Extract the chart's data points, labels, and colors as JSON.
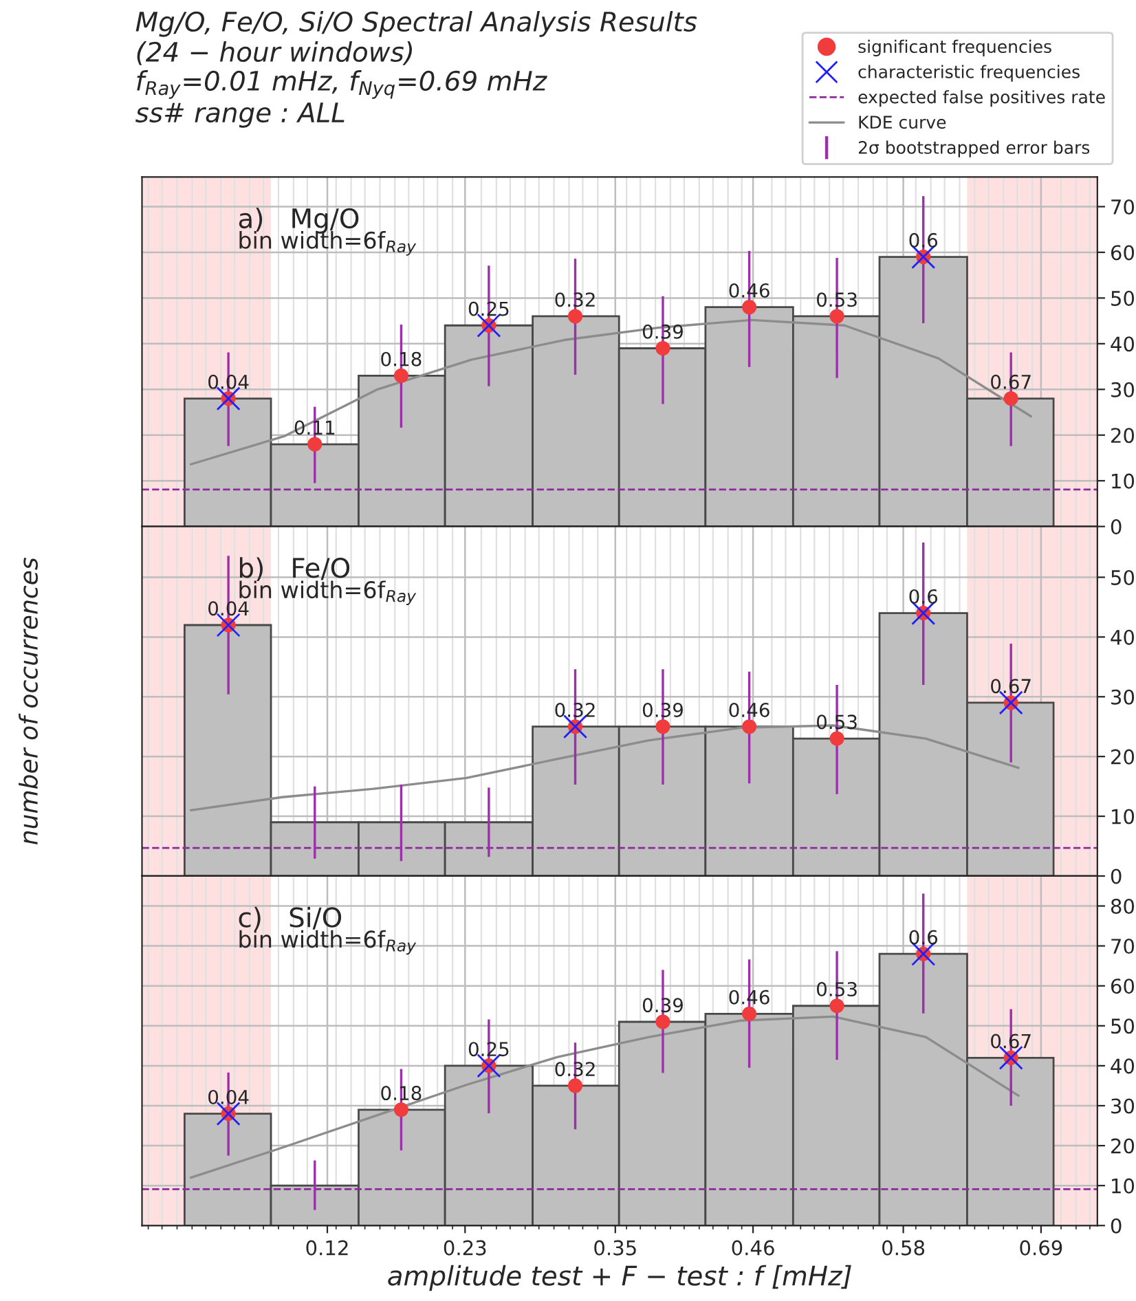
{
  "chart_data": [
    {
      "type": "histogram",
      "title": "Mg/O, Fe/O, Si/O Spectral Analysis Results",
      "subtitle": "(24 − hour windows)\nf$_{Ray}$=0.01 mHz, f$_{Nyq}$=0.69 mHz\nss# range : ALL",
      "annotations": [
        "a)   Mg/O",
        "bin width=6f$_{Ray}$",
        {
          "text": "0.04",
          "x": 0.041,
          "y": 28
        },
        {
          "text": "0.11",
          "x": 0.11,
          "y": 18
        },
        {
          "text": "0.18",
          "x": 0.179,
          "y": 33
        },
        {
          "text": "0.25",
          "x": 0.249,
          "y": 44
        },
        {
          "text": "0.32",
          "x": 0.318,
          "y": 46
        },
        {
          "text": "0.39",
          "x": 0.388,
          "y": 39
        },
        {
          "text": "0.46",
          "x": 0.457,
          "y": 48
        },
        {
          "text": "0.53",
          "x": 0.527,
          "y": 46
        },
        {
          "text": "0.6",
          "x": 0.596,
          "y": 59
        },
        {
          "text": "0.67",
          "x": 0.666,
          "y": 28
        }
      ],
      "xlim": [
        -0.028,
        0.735
      ],
      "xticks": [
        {
          "value": -0.023,
          "label": null
        },
        {
          "value": -0.012,
          "label": null
        },
        {
          "value": 0.0,
          "label": null
        },
        {
          "value": 0.012,
          "label": null
        },
        {
          "value": 0.023,
          "label": null
        },
        {
          "value": 0.035,
          "label": null
        },
        {
          "value": 0.046,
          "label": null
        },
        {
          "value": 0.058,
          "label": null
        },
        {
          "value": 0.069,
          "label": null
        },
        {
          "value": 0.081,
          "label": null
        },
        {
          "value": 0.093,
          "label": null
        },
        {
          "value": 0.104,
          "label": null
        },
        0.12,
        {
          "value": 0.127,
          "label": null
        },
        {
          "value": 0.139,
          "label": null
        },
        {
          "value": 0.15,
          "label": null
        },
        {
          "value": 0.162,
          "label": null
        },
        {
          "value": 0.174,
          "label": null
        },
        {
          "value": 0.185,
          "label": null
        },
        {
          "value": 0.197,
          "label": null
        },
        {
          "value": 0.208,
          "label": null
        },
        {
          "value": 0.22,
          "label": null
        },
        0.23,
        {
          "value": 0.243,
          "label": null
        },
        {
          "value": 0.255,
          "label": null
        },
        {
          "value": 0.266,
          "label": null
        },
        {
          "value": 0.278,
          "label": null
        },
        {
          "value": 0.289,
          "label": null
        },
        {
          "value": 0.301,
          "label": null
        },
        {
          "value": 0.313,
          "label": null
        },
        {
          "value": 0.324,
          "label": null
        },
        {
          "value": 0.336,
          "label": null
        },
        0.35,
        {
          "value": 0.359,
          "label": null
        },
        {
          "value": 0.37,
          "label": null
        },
        {
          "value": 0.382,
          "label": null
        },
        {
          "value": 0.394,
          "label": null
        },
        {
          "value": 0.405,
          "label": null
        },
        {
          "value": 0.417,
          "label": null
        },
        {
          "value": 0.428,
          "label": null
        },
        {
          "value": 0.44,
          "label": null
        },
        {
          "value": 0.451,
          "label": null
        },
        0.46,
        {
          "value": 0.475,
          "label": null
        },
        {
          "value": 0.486,
          "label": null
        },
        {
          "value": 0.498,
          "label": null
        },
        {
          "value": 0.509,
          "label": null
        },
        {
          "value": 0.521,
          "label": null
        },
        {
          "value": 0.532,
          "label": null
        },
        {
          "value": 0.544,
          "label": null
        },
        {
          "value": 0.556,
          "label": null
        },
        {
          "value": 0.567,
          "label": null
        },
        0.58,
        {
          "value": 0.59,
          "label": null
        },
        {
          "value": 0.602,
          "label": null
        },
        {
          "value": 0.613,
          "label": null
        },
        {
          "value": 0.625,
          "label": null
        },
        {
          "value": 0.637,
          "label": null
        },
        {
          "value": 0.648,
          "label": null
        },
        {
          "value": 0.66,
          "label": null
        },
        {
          "value": 0.671,
          "label": null
        },
        {
          "value": 0.683,
          "label": null
        },
        0.69,
        {
          "value": 0.706,
          "label": null
        },
        {
          "value": 0.718,
          "label": null
        },
        {
          "value": 0.729,
          "label": null
        }
      ],
      "ylim": [
        0,
        76.5
      ],
      "yticks": [
        0,
        10,
        20,
        30,
        40,
        50,
        60,
        70
      ],
      "tick_labels": "y",
      "grid": true,
      "legend": "top right",
      "bands": [
        {
          "axis": "x",
          "from": -0.028,
          "to": 0.075,
          "color": "#ffe0e0"
        },
        {
          "axis": "x",
          "from": 0.631,
          "to": 0.735,
          "color": "#ffe0e0"
        }
      ],
      "ref_lines": [
        {
          "axis": "y",
          "value": 8.1,
          "label": "expected false positives rate",
          "color": "#8e2a9e",
          "line_style": "dashed"
        }
      ],
      "series": [
        {
          "color": "#bfbfbf",
          "bins": [
            0.006,
            0.075,
            0.145,
            0.214,
            0.284,
            0.353,
            0.422,
            0.492,
            0.561,
            0.631,
            0.7
          ],
          "values": [
            28,
            18,
            33,
            44,
            46,
            39,
            48,
            46,
            59,
            28
          ]
        },
        {
          "name": "significant frequencies",
          "type": "scatter",
          "marker": "circle",
          "color": "#f03c3c",
          "x": [
            0.041,
            0.11,
            0.179,
            0.249,
            0.318,
            0.388,
            0.457,
            0.527,
            0.596,
            0.666
          ],
          "values": [
            28,
            18,
            33,
            44,
            46,
            39,
            48,
            46,
            59,
            28
          ]
        },
        {
          "name": "characteristic frequencies",
          "type": "scatter",
          "marker": "cross",
          "color": "#2020ff",
          "x": [
            0.041,
            0.249,
            0.596
          ],
          "values": [
            28,
            44,
            59
          ]
        },
        {
          "name": "KDE curve",
          "type": "line",
          "color": "#8c8c8c",
          "x": [
            0.011,
            0.086,
            0.16,
            0.235,
            0.309,
            0.384,
            0.459,
            0.533,
            0.608,
            0.682
          ],
          "values": [
            13.6,
            19.8,
            30,
            36.5,
            40.8,
            43.5,
            45.2,
            44,
            36.8,
            24.1
          ]
        },
        {
          "name": "2σ bootstrapped error bars",
          "type": "bar",
          "color": "#9b30aa",
          "x": [
            0.041,
            0.11,
            0.179,
            0.249,
            0.318,
            0.388,
            0.457,
            0.527,
            0.596,
            0.666
          ],
          "base": [
            17.6,
            9.5,
            21.6,
            30.7,
            33.2,
            26.8,
            34.9,
            32.5,
            44.5,
            17.6
          ],
          "values": [
            20.5,
            16.7,
            22.6,
            26.4,
            25.4,
            23.6,
            25.4,
            26.3,
            27.8,
            20.5
          ]
        }
      ]
    },
    {
      "type": "histogram",
      "ylabel": "number of occurrences",
      "annotations": [
        "b)   Fe/O",
        "bin width=6f$_{Ray}$",
        {
          "text": "0.04",
          "x": 0.041,
          "y": 42
        },
        {
          "text": "0.32",
          "x": 0.318,
          "y": 25
        },
        {
          "text": "0.39",
          "x": 0.388,
          "y": 25
        },
        {
          "text": "0.46",
          "x": 0.457,
          "y": 25
        },
        {
          "text": "0.53",
          "x": 0.527,
          "y": 23
        },
        {
          "text": "0.6",
          "x": 0.596,
          "y": 44
        },
        {
          "text": "0.67",
          "x": 0.666,
          "y": 29
        }
      ],
      "xlim": [
        -0.028,
        0.735
      ],
      "xticks": [
        {
          "value": -0.023,
          "label": null
        },
        {
          "value": -0.012,
          "label": null
        },
        {
          "value": 0.0,
          "label": null
        },
        {
          "value": 0.012,
          "label": null
        },
        {
          "value": 0.023,
          "label": null
        },
        {
          "value": 0.035,
          "label": null
        },
        {
          "value": 0.046,
          "label": null
        },
        {
          "value": 0.058,
          "label": null
        },
        {
          "value": 0.069,
          "label": null
        },
        {
          "value": 0.081,
          "label": null
        },
        {
          "value": 0.093,
          "label": null
        },
        {
          "value": 0.104,
          "label": null
        },
        0.12,
        {
          "value": 0.127,
          "label": null
        },
        {
          "value": 0.139,
          "label": null
        },
        {
          "value": 0.15,
          "label": null
        },
        {
          "value": 0.162,
          "label": null
        },
        {
          "value": 0.174,
          "label": null
        },
        {
          "value": 0.185,
          "label": null
        },
        {
          "value": 0.197,
          "label": null
        },
        {
          "value": 0.208,
          "label": null
        },
        {
          "value": 0.22,
          "label": null
        },
        0.23,
        {
          "value": 0.243,
          "label": null
        },
        {
          "value": 0.255,
          "label": null
        },
        {
          "value": 0.266,
          "label": null
        },
        {
          "value": 0.278,
          "label": null
        },
        {
          "value": 0.289,
          "label": null
        },
        {
          "value": 0.301,
          "label": null
        },
        {
          "value": 0.313,
          "label": null
        },
        {
          "value": 0.324,
          "label": null
        },
        {
          "value": 0.336,
          "label": null
        },
        0.35,
        {
          "value": 0.359,
          "label": null
        },
        {
          "value": 0.37,
          "label": null
        },
        {
          "value": 0.382,
          "label": null
        },
        {
          "value": 0.394,
          "label": null
        },
        {
          "value": 0.405,
          "label": null
        },
        {
          "value": 0.417,
          "label": null
        },
        {
          "value": 0.428,
          "label": null
        },
        {
          "value": 0.44,
          "label": null
        },
        {
          "value": 0.451,
          "label": null
        },
        0.46,
        {
          "value": 0.475,
          "label": null
        },
        {
          "value": 0.486,
          "label": null
        },
        {
          "value": 0.498,
          "label": null
        },
        {
          "value": 0.509,
          "label": null
        },
        {
          "value": 0.521,
          "label": null
        },
        {
          "value": 0.532,
          "label": null
        },
        {
          "value": 0.544,
          "label": null
        },
        {
          "value": 0.556,
          "label": null
        },
        {
          "value": 0.567,
          "label": null
        },
        0.58,
        {
          "value": 0.59,
          "label": null
        },
        {
          "value": 0.602,
          "label": null
        },
        {
          "value": 0.613,
          "label": null
        },
        {
          "value": 0.625,
          "label": null
        },
        {
          "value": 0.637,
          "label": null
        },
        {
          "value": 0.648,
          "label": null
        },
        {
          "value": 0.66,
          "label": null
        },
        {
          "value": 0.671,
          "label": null
        },
        {
          "value": 0.683,
          "label": null
        },
        0.69,
        {
          "value": 0.706,
          "label": null
        },
        {
          "value": 0.718,
          "label": null
        },
        {
          "value": 0.729,
          "label": null
        }
      ],
      "ylim": [
        0,
        58.5
      ],
      "yticks": [
        0,
        10,
        20,
        30,
        40,
        50
      ],
      "tick_labels": "y",
      "grid": true,
      "bands": [
        {
          "axis": "x",
          "from": -0.028,
          "to": 0.075,
          "color": "#ffe0e0"
        },
        {
          "axis": "x",
          "from": 0.631,
          "to": 0.735,
          "color": "#ffe0e0"
        }
      ],
      "ref_lines": [
        {
          "axis": "y",
          "value": 4.7,
          "color": "#8e2a9e",
          "line_style": "dashed"
        }
      ],
      "series": [
        {
          "color": "#bfbfbf",
          "bins": [
            0.006,
            0.075,
            0.145,
            0.214,
            0.284,
            0.353,
            0.422,
            0.492,
            0.561,
            0.631,
            0.7
          ],
          "values": [
            42,
            9,
            9,
            9,
            25,
            25,
            25,
            23,
            44,
            29
          ]
        },
        {
          "type": "scatter",
          "marker": "circle",
          "color": "#f03c3c",
          "x": [
            0.041,
            0.318,
            0.388,
            0.457,
            0.527,
            0.596,
            0.666
          ],
          "values": [
            42,
            25,
            25,
            25,
            23,
            44,
            29
          ]
        },
        {
          "type": "scatter",
          "marker": "cross",
          "color": "#2020ff",
          "x": [
            0.041,
            0.318,
            0.596,
            0.666
          ],
          "values": [
            42,
            25,
            44,
            29
          ]
        },
        {
          "type": "line",
          "color": "#8c8c8c",
          "x": [
            0.011,
            0.084,
            0.157,
            0.231,
            0.304,
            0.377,
            0.45,
            0.524,
            0.598,
            0.672
          ],
          "values": [
            11,
            13.2,
            14.6,
            16.4,
            19.6,
            22.7,
            24.8,
            25.2,
            23,
            18.1
          ]
        },
        {
          "type": "bar",
          "color": "#9b30aa",
          "x": [
            0.041,
            0.11,
            0.179,
            0.249,
            0.318,
            0.388,
            0.457,
            0.527,
            0.596,
            0.666
          ],
          "base": [
            30.4,
            2.9,
            2.5,
            3.2,
            15.3,
            15.3,
            15.5,
            13.7,
            32,
            19
          ],
          "values": [
            23.2,
            12.1,
            12.8,
            11.6,
            19.3,
            19.3,
            18.7,
            18.3,
            23.8,
            19.9
          ]
        }
      ]
    },
    {
      "type": "histogram",
      "xlabel": "amplitude test + F − test : f [mHz]",
      "annotations": [
        "c)   Si/O",
        "bin width=6f$_{Ray}$",
        {
          "text": "0.04",
          "x": 0.041,
          "y": 28
        },
        {
          "text": "0.18",
          "x": 0.179,
          "y": 29
        },
        {
          "text": "0.25",
          "x": 0.249,
          "y": 40
        },
        {
          "text": "0.32",
          "x": 0.318,
          "y": 35
        },
        {
          "text": "0.39",
          "x": 0.388,
          "y": 51
        },
        {
          "text": "0.46",
          "x": 0.457,
          "y": 53
        },
        {
          "text": "0.53",
          "x": 0.527,
          "y": 55
        },
        {
          "text": "0.6",
          "x": 0.596,
          "y": 68
        },
        {
          "text": "0.67",
          "x": 0.666,
          "y": 42
        }
      ],
      "xlim": [
        -0.028,
        0.735
      ],
      "xticks": [
        {
          "value": -0.023,
          "label": null
        },
        {
          "value": -0.012,
          "label": null
        },
        {
          "value": 0.0,
          "label": null
        },
        {
          "value": 0.012,
          "label": null
        },
        {
          "value": 0.023,
          "label": null
        },
        {
          "value": 0.035,
          "label": null
        },
        {
          "value": 0.046,
          "label": null
        },
        {
          "value": 0.058,
          "label": null
        },
        {
          "value": 0.069,
          "label": null
        },
        {
          "value": 0.081,
          "label": null
        },
        {
          "value": 0.093,
          "label": null
        },
        {
          "value": 0.104,
          "label": null
        },
        0.12,
        {
          "value": 0.127,
          "label": null
        },
        {
          "value": 0.139,
          "label": null
        },
        {
          "value": 0.15,
          "label": null
        },
        {
          "value": 0.162,
          "label": null
        },
        {
          "value": 0.174,
          "label": null
        },
        {
          "value": 0.185,
          "label": null
        },
        {
          "value": 0.197,
          "label": null
        },
        {
          "value": 0.208,
          "label": null
        },
        {
          "value": 0.22,
          "label": null
        },
        0.23,
        {
          "value": 0.243,
          "label": null
        },
        {
          "value": 0.255,
          "label": null
        },
        {
          "value": 0.266,
          "label": null
        },
        {
          "value": 0.278,
          "label": null
        },
        {
          "value": 0.289,
          "label": null
        },
        {
          "value": 0.301,
          "label": null
        },
        {
          "value": 0.313,
          "label": null
        },
        {
          "value": 0.324,
          "label": null
        },
        {
          "value": 0.336,
          "label": null
        },
        0.35,
        {
          "value": 0.359,
          "label": null
        },
        {
          "value": 0.37,
          "label": null
        },
        {
          "value": 0.382,
          "label": null
        },
        {
          "value": 0.394,
          "label": null
        },
        {
          "value": 0.405,
          "label": null
        },
        {
          "value": 0.417,
          "label": null
        },
        {
          "value": 0.428,
          "label": null
        },
        {
          "value": 0.44,
          "label": null
        },
        {
          "value": 0.451,
          "label": null
        },
        0.46,
        {
          "value": 0.475,
          "label": null
        },
        {
          "value": 0.486,
          "label": null
        },
        {
          "value": 0.498,
          "label": null
        },
        {
          "value": 0.509,
          "label": null
        },
        {
          "value": 0.521,
          "label": null
        },
        {
          "value": 0.532,
          "label": null
        },
        {
          "value": 0.544,
          "label": null
        },
        {
          "value": 0.556,
          "label": null
        },
        {
          "value": 0.567,
          "label": null
        },
        0.58,
        {
          "value": 0.59,
          "label": null
        },
        {
          "value": 0.602,
          "label": null
        },
        {
          "value": 0.613,
          "label": null
        },
        {
          "value": 0.625,
          "label": null
        },
        {
          "value": 0.637,
          "label": null
        },
        {
          "value": 0.648,
          "label": null
        },
        {
          "value": 0.66,
          "label": null
        },
        {
          "value": 0.671,
          "label": null
        },
        {
          "value": 0.683,
          "label": null
        },
        0.69,
        {
          "value": 0.706,
          "label": null
        },
        {
          "value": 0.718,
          "label": null
        },
        {
          "value": 0.729,
          "label": null
        }
      ],
      "ylim": [
        0,
        87.5
      ],
      "yticks": [
        0,
        10,
        20,
        30,
        40,
        50,
        60,
        70,
        80
      ],
      "grid": true,
      "bands": [
        {
          "axis": "x",
          "from": -0.028,
          "to": 0.075,
          "color": "#ffe0e0"
        },
        {
          "axis": "x",
          "from": 0.631,
          "to": 0.735,
          "color": "#ffe0e0"
        }
      ],
      "ref_lines": [
        {
          "axis": "y",
          "value": 9.1,
          "color": "#8e2a9e",
          "line_style": "dashed"
        }
      ],
      "series": [
        {
          "color": "#bfbfbf",
          "bins": [
            0.006,
            0.075,
            0.145,
            0.214,
            0.284,
            0.353,
            0.422,
            0.492,
            0.561,
            0.631,
            0.7
          ],
          "values": [
            28,
            10,
            29,
            40,
            35,
            51,
            53,
            55,
            68,
            42
          ]
        },
        {
          "type": "scatter",
          "marker": "circle",
          "color": "#f03c3c",
          "x": [
            0.041,
            0.179,
            0.249,
            0.318,
            0.388,
            0.457,
            0.527,
            0.596,
            0.666
          ],
          "values": [
            28,
            29,
            40,
            35,
            51,
            53,
            55,
            68,
            42
          ]
        },
        {
          "type": "scatter",
          "marker": "cross",
          "color": "#2020ff",
          "x": [
            0.041,
            0.249,
            0.596,
            0.666
          ],
          "values": [
            28,
            40,
            68,
            42
          ]
        },
        {
          "type": "line",
          "color": "#8c8c8c",
          "x": [
            0.011,
            0.084,
            0.157,
            0.231,
            0.304,
            0.377,
            0.45,
            0.524,
            0.598,
            0.672
          ],
          "values": [
            12,
            19.5,
            27.3,
            35.2,
            42.2,
            47.2,
            51.3,
            52.3,
            47.2,
            32.5
          ]
        },
        {
          "type": "bar",
          "color": "#9b30aa",
          "x": [
            0.041,
            0.11,
            0.179,
            0.249,
            0.318,
            0.388,
            0.457,
            0.527,
            0.596,
            0.666
          ],
          "base": [
            17.5,
            3.9,
            18.8,
            28.1,
            24.1,
            38.2,
            39.5,
            41.5,
            53.1,
            30
          ],
          "values": [
            20.8,
            12.4,
            20.4,
            23.5,
            21.7,
            25.8,
            27.1,
            27.2,
            30,
            24.2
          ]
        }
      ]
    }
  ]
}
